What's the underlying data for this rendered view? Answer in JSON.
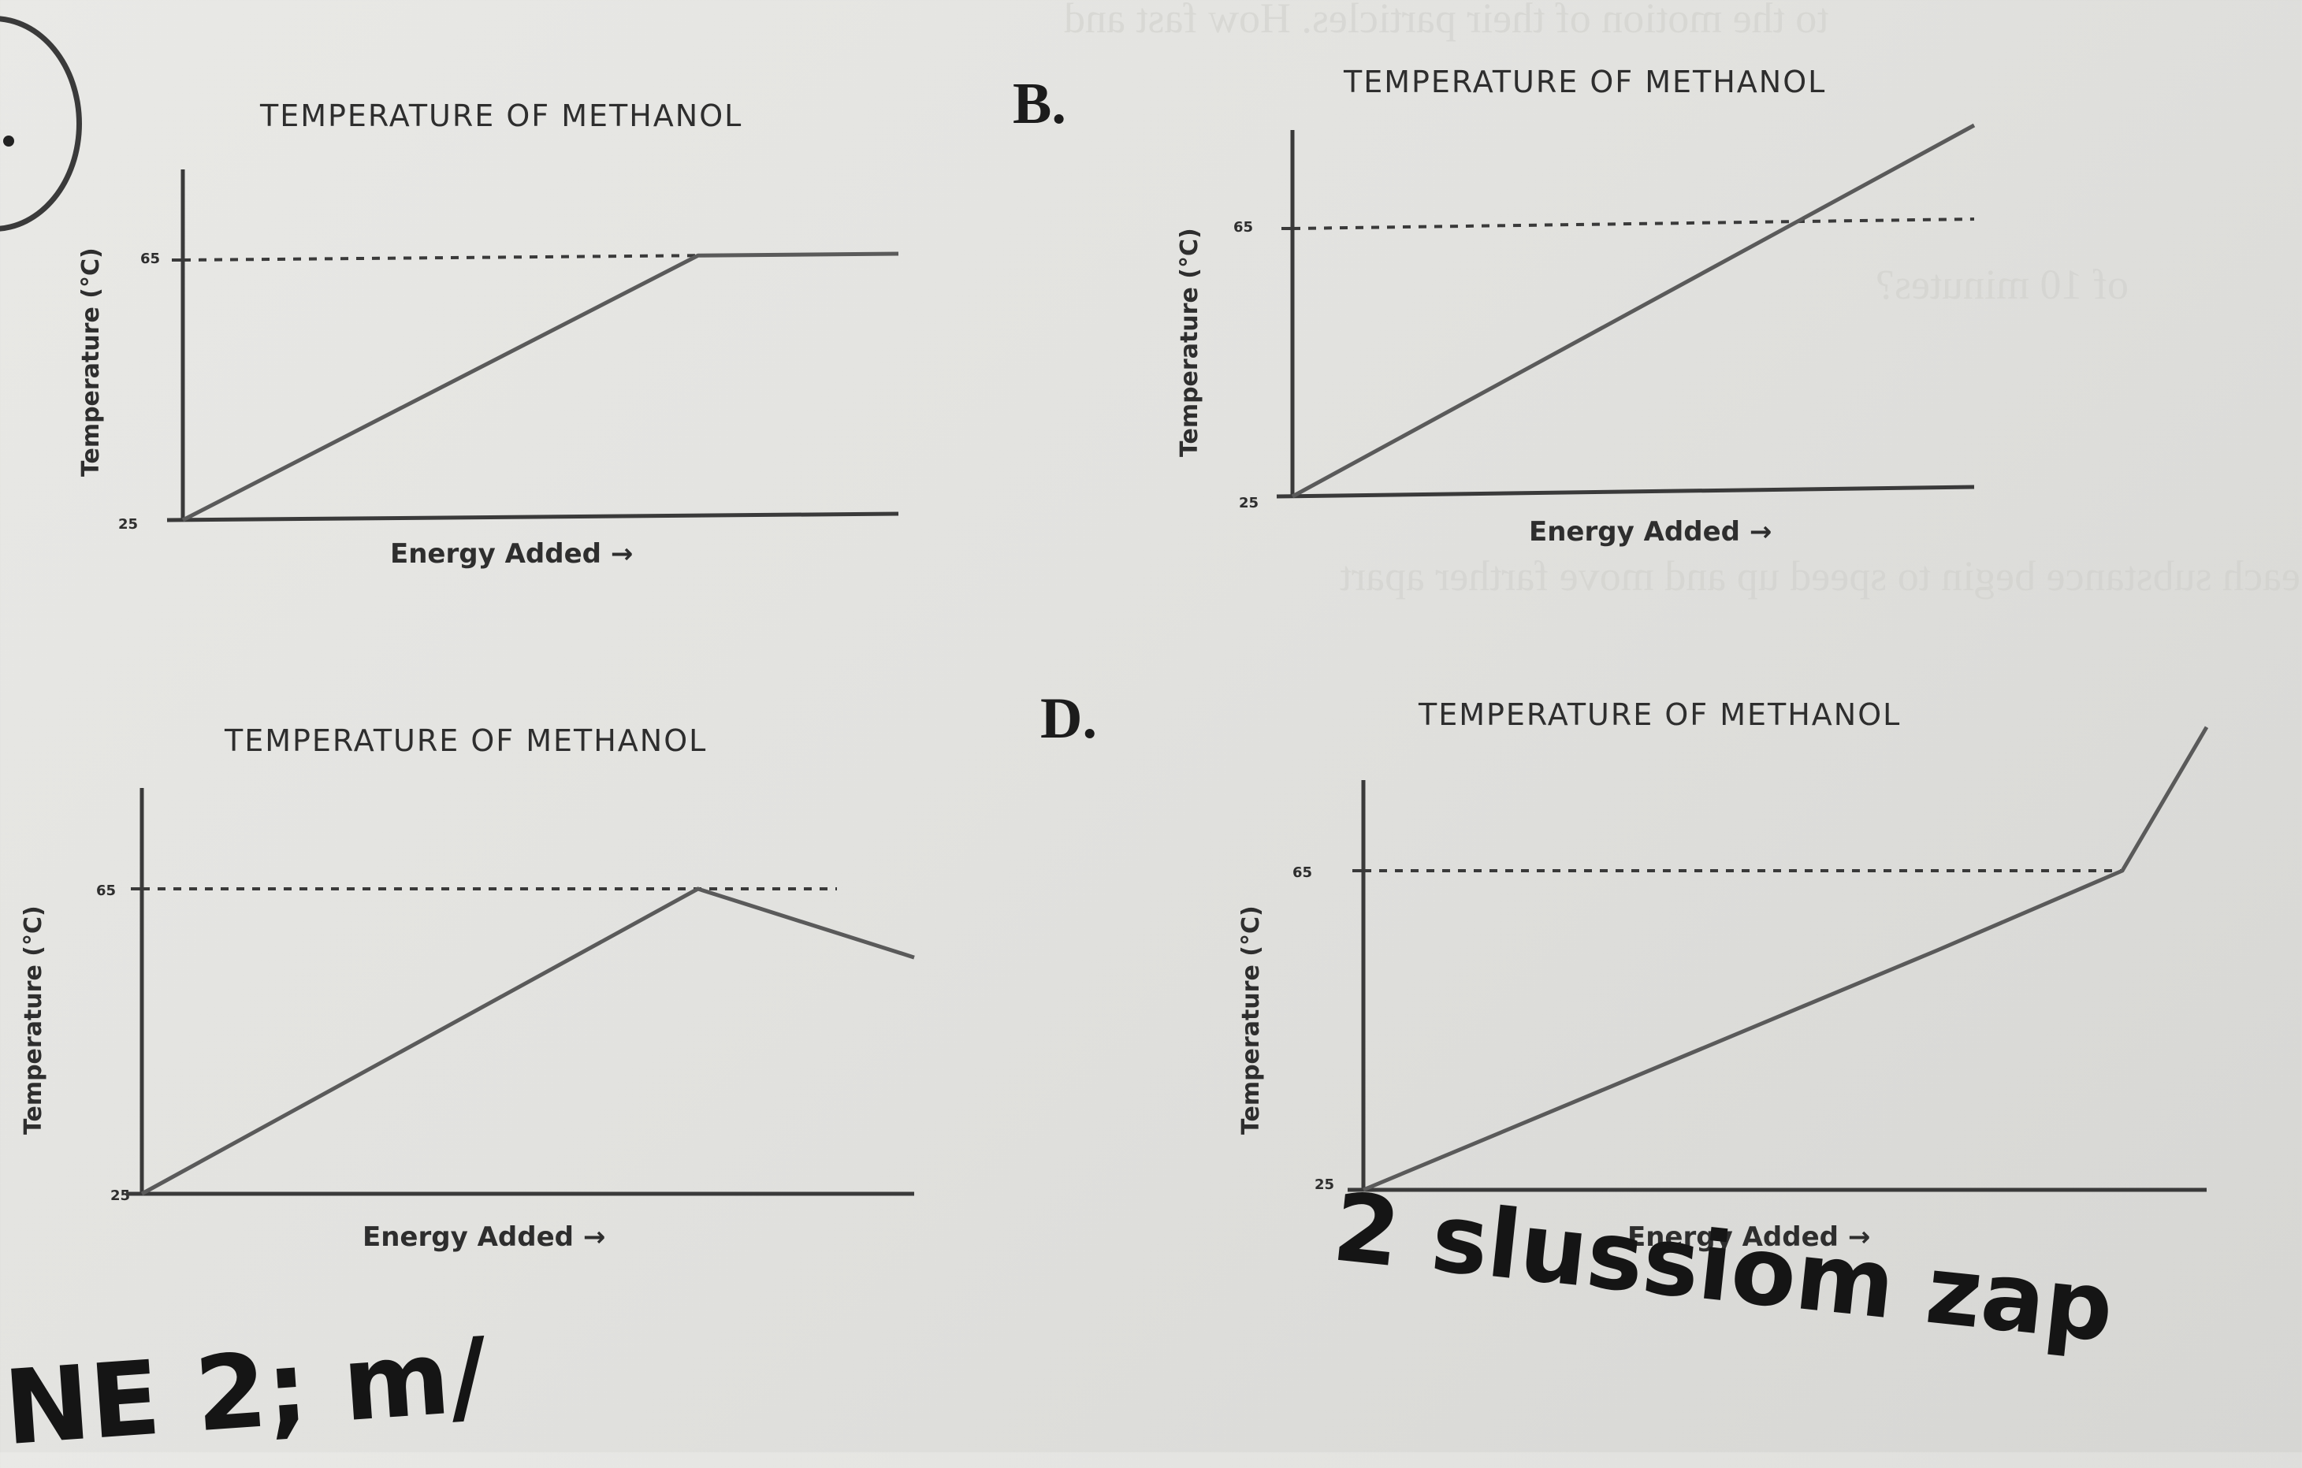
{
  "panels": [
    {
      "letter": "",
      "title": "TEMPERATURE OF METHANOL",
      "ylabel": "Temperature (°C)",
      "xlabel": "Energy Added →",
      "ytick_low": "25",
      "ytick_high": "65"
    },
    {
      "letter": "B.",
      "title": "TEMPERATURE OF METHANOL",
      "ylabel": "Temperature (°C)",
      "xlabel": "Energy Added →",
      "ytick_low": "25",
      "ytick_high": "65"
    },
    {
      "letter": "",
      "title": "TEMPERATURE OF METHANOL",
      "ylabel": "Temperature (°C)",
      "xlabel": "Energy Added →",
      "ytick_low": "25",
      "ytick_high": "65"
    },
    {
      "letter": "D.",
      "title": "TEMPERATURE OF METHANOL",
      "ylabel": "Temperature (°C)",
      "xlabel": "Energy Added →",
      "ytick_low": "25",
      "ytick_high": "65"
    }
  ],
  "chart_data": [
    {
      "type": "line",
      "title": "TEMPERATURE OF METHANOL",
      "xlabel": "Energy Added",
      "ylabel": "Temperature (°C)",
      "ylim": [
        25,
        65
      ],
      "yticks": [
        25,
        65
      ],
      "reference_line": 65,
      "x": [
        0,
        0.72,
        1.0
      ],
      "y": [
        25,
        65,
        65
      ]
    },
    {
      "type": "line",
      "title": "TEMPERATURE OF METHANOL",
      "xlabel": "Energy Added",
      "ylabel": "Temperature (°C)",
      "ylim": [
        25,
        65
      ],
      "yticks": [
        25,
        65
      ],
      "reference_line": 65,
      "x": [
        0,
        1.0
      ],
      "y": [
        25,
        79
      ]
    },
    {
      "type": "line",
      "title": "TEMPERATURE OF METHANOL",
      "xlabel": "Energy Added",
      "ylabel": "Temperature (°C)",
      "ylim": [
        25,
        65
      ],
      "yticks": [
        25,
        65
      ],
      "reference_line": 65,
      "x": [
        0,
        0.72,
        1.0
      ],
      "y": [
        25,
        65,
        56
      ]
    },
    {
      "type": "line",
      "title": "TEMPERATURE OF METHANOL",
      "xlabel": "Energy Added",
      "ylabel": "Temperature (°C)",
      "ylim": [
        25,
        65
      ],
      "yticks": [
        25,
        65
      ],
      "reference_line": 65,
      "x": [
        0,
        0.68,
        0.9,
        1.0
      ],
      "y": [
        25,
        55,
        65,
        83
      ]
    }
  ],
  "handwriting": {
    "bottom_left": "NE 2; m/ ",
    "bottom_right": "2 slussiom zap"
  },
  "colors": {
    "ink": "#3a3a3a",
    "line": "#5a5a5a"
  }
}
